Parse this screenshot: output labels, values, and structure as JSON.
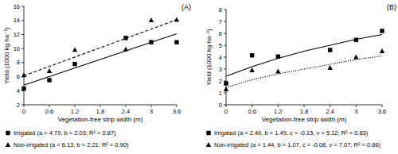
{
  "chart_data": [
    {
      "type": "scatter",
      "title": "(A)",
      "x_label": "Vegetation-free strip width (m)",
      "y_label": "Yield (1000 kg ha⁻¹)",
      "xlim": [
        0,
        3.6
      ],
      "xticks": [
        0,
        0.6,
        1.2,
        1.8,
        2.4,
        3,
        3.6
      ],
      "ylim": [
        2,
        16
      ],
      "yticks": [
        2,
        4,
        6,
        8,
        10,
        12,
        14,
        16
      ],
      "grid": false,
      "legend": "bottom",
      "series": [
        {
          "name": "Irrigated (a = 4.79, b = 2.03; R² = 0.87)",
          "type": "scatter",
          "marker": "square",
          "color": "#000000",
          "x": [
            0,
            0.6,
            1.2,
            2.4,
            3,
            3.6
          ],
          "values": [
            4.3,
            5.5,
            7.8,
            11.5,
            10.9,
            10.9
          ]
        },
        {
          "name": "Non-irrigated (a = 6.13, b = 2.21; R² = 0.90)",
          "type": "scatter",
          "marker": "triangle",
          "color": "#000000",
          "x": [
            0,
            0.6,
            1.2,
            2.4,
            3,
            3.6
          ],
          "values": [
            6.2,
            6.8,
            9.8,
            9.9,
            14.0,
            14.1
          ]
        },
        {
          "type": "line",
          "line_style": "solid",
          "color": "#000000",
          "x": [
            0,
            3.6
          ],
          "values": [
            4.79,
            12.1
          ]
        },
        {
          "type": "line",
          "line_style": "dashed",
          "color": "#000000",
          "x": [
            0,
            3.6
          ],
          "values": [
            6.13,
            14.1
          ]
        }
      ]
    },
    {
      "type": "scatter",
      "title": "(B)",
      "x_label": "Vegetation-free strip width (m)",
      "y_label": "Yield (1000 kg ha⁻¹)",
      "xlim": [
        0,
        3.6
      ],
      "xticks": [
        0,
        0.6,
        1.2,
        1.8,
        2.4,
        3,
        3.6
      ],
      "ylim": [
        0,
        8
      ],
      "yticks": [
        0,
        1,
        2,
        3,
        4,
        5,
        6,
        7,
        8
      ],
      "grid": false,
      "legend": "bottom",
      "series": [
        {
          "name": "Irrigated (a = 2.40, b = 1.49, c = -0.15, v = 5.12; R² = 0.83)",
          "type": "scatter",
          "marker": "square",
          "color": "#000000",
          "x": [
            0,
            0.6,
            1.2,
            2.4,
            3,
            3.6
          ],
          "values": [
            1.8,
            4.15,
            4.05,
            4.6,
            5.45,
            6.2
          ]
        },
        {
          "name": "Non-irrigated (a = 1.44, b = 1.07, c = -0.08, v = 7.07; R² = 0.86)",
          "type": "scatter",
          "marker": "triangle",
          "color": "#000000",
          "x": [
            0,
            0.6,
            1.2,
            2.4,
            3,
            3.6
          ],
          "values": [
            1.3,
            2.9,
            2.8,
            3.1,
            4.0,
            4.5
          ]
        },
        {
          "type": "line",
          "line_style": "solid",
          "color": "#000000",
          "x": [
            0,
            0.6,
            1.2,
            1.8,
            2.4,
            3,
            3.6
          ],
          "values": [
            2.4,
            3.2,
            3.9,
            4.5,
            5.0,
            5.5,
            5.9
          ]
        },
        {
          "type": "line",
          "line_style": "dotted",
          "color": "#000000",
          "x": [
            0,
            0.6,
            1.2,
            1.8,
            2.4,
            3,
            3.6
          ],
          "values": [
            1.45,
            2.1,
            2.6,
            3.0,
            3.4,
            3.8,
            4.1
          ]
        }
      ]
    }
  ]
}
